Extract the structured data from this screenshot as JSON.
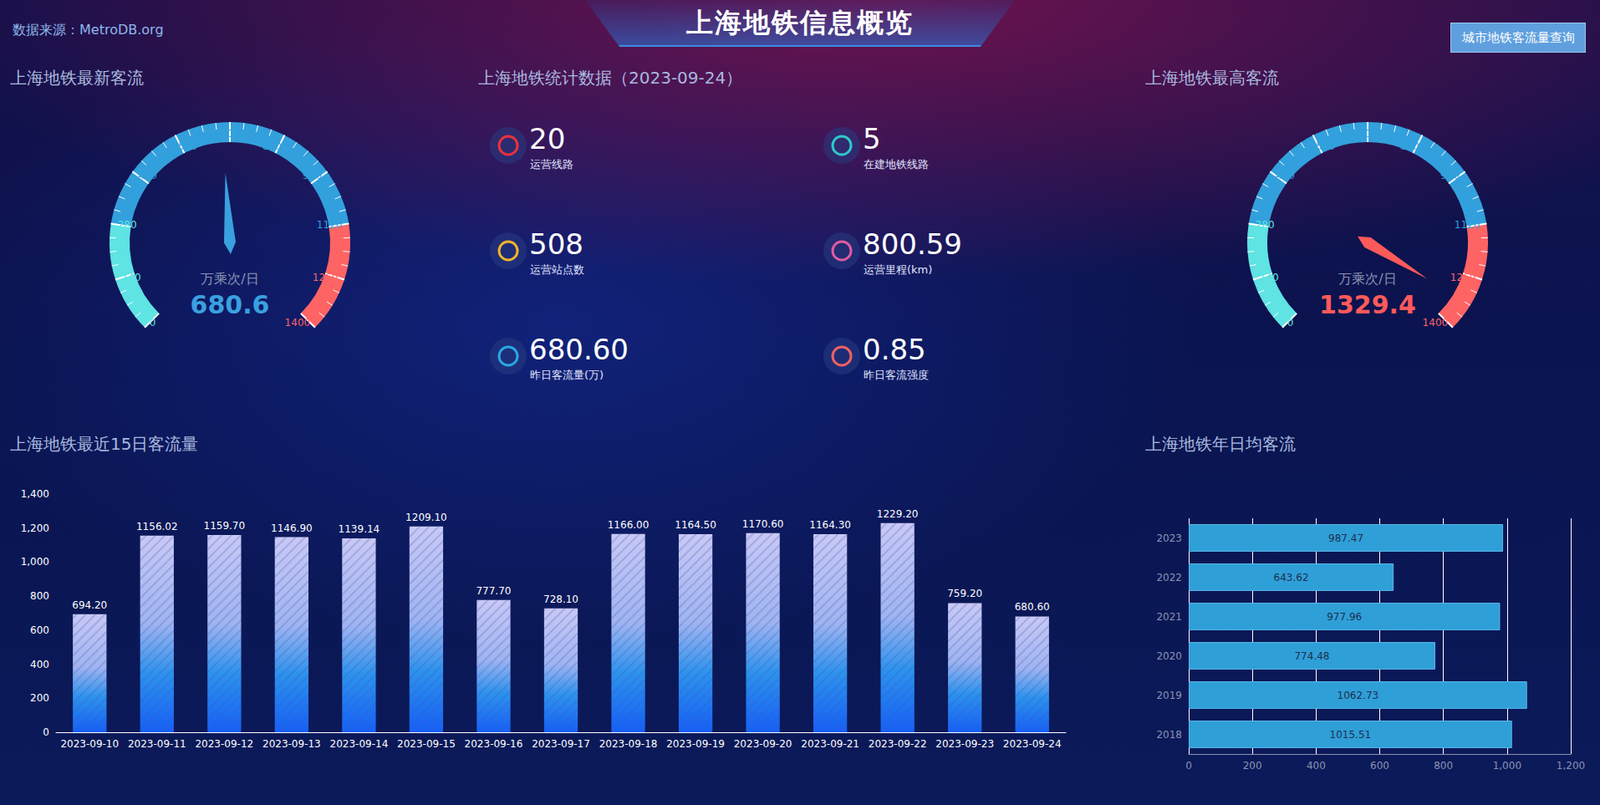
{
  "header": {
    "title": "上海地铁信息概览",
    "source": "数据来源：MetroDB.org",
    "button": "城市地铁客流量查询"
  },
  "stats": {
    "title": "上海地铁统计数据（2023-09-24）",
    "items": [
      {
        "value": "20",
        "label": "运营线路"
      },
      {
        "value": "5",
        "label": "在建地铁线路"
      },
      {
        "value": "508",
        "label": "运营站点数"
      },
      {
        "value": "800.59",
        "label": "运营里程(km)"
      },
      {
        "value": "680.60",
        "label": "昨日客流量(万)"
      },
      {
        "value": "0.85",
        "label": "昨日客流强度"
      }
    ]
  },
  "chart_data": [
    {
      "type": "gauge",
      "title": "上海地铁最新客流",
      "unit": "万乘次/日",
      "value": 680.6,
      "color": "#3aa0e0",
      "ylim": [
        0,
        1400
      ],
      "yticks": [
        0,
        140,
        280,
        420,
        560,
        700,
        840,
        980,
        1120,
        1260,
        1400
      ]
    },
    {
      "type": "gauge",
      "title": "上海地铁最高客流",
      "unit": "万乘次/日",
      "value": 1329.4,
      "color": "#ff5a5a",
      "ylim": [
        0,
        1400
      ],
      "yticks": [
        0,
        140,
        280,
        420,
        560,
        700,
        840,
        980,
        1120,
        1260,
        1400
      ]
    },
    {
      "type": "bar",
      "title": "上海地铁最近15日客流量",
      "categories": [
        "2023-09-10",
        "2023-09-11",
        "2023-09-12",
        "2023-09-13",
        "2023-09-14",
        "2023-09-15",
        "2023-09-16",
        "2023-09-17",
        "2023-09-18",
        "2023-09-19",
        "2023-09-20",
        "2023-09-21",
        "2023-09-22",
        "2023-09-23",
        "2023-09-24"
      ],
      "values": [
        694.2,
        1156.02,
        1159.7,
        1146.9,
        1139.14,
        1209.1,
        777.7,
        728.1,
        1166,
        1164.5,
        1170.6,
        1164.3,
        1229.2,
        759.2,
        680.6
      ],
      "value_labels": [
        "694.20",
        "1156.02",
        "1159.70",
        "1146.90",
        "1139.14",
        "1209.10",
        "777.70",
        "728.10",
        "1166.00",
        "1164.50",
        "1170.60",
        "1164.30",
        "1229.20",
        "759.20",
        "680.60"
      ],
      "color": "#1560f5",
      "data_labels": true,
      "grid": false,
      "ylim": [
        0,
        1400
      ],
      "yticks": [
        0,
        200,
        400,
        600,
        800,
        {
          "value": 1000,
          "label": "1,000"
        },
        {
          "value": 1200,
          "label": "1,200"
        },
        {
          "value": 1400,
          "label": "1,400"
        }
      ]
    },
    {
      "type": "bar",
      "orientation": "horizontal",
      "title": "上海地铁年日均客流",
      "categories": [
        "2018",
        "2019",
        "2020",
        "2021",
        "2022",
        "2023"
      ],
      "values": [
        1015.51,
        1062.73,
        774.48,
        977.96,
        643.62,
        987.47
      ],
      "color": "#2f9fd8",
      "data_labels": true,
      "grid": true,
      "xlim": [
        0,
        1200
      ],
      "xticks": [
        0,
        200,
        400,
        600,
        800,
        {
          "value": 1000,
          "label": "1,000"
        },
        {
          "value": 1200,
          "label": "1,200"
        }
      ]
    }
  ]
}
